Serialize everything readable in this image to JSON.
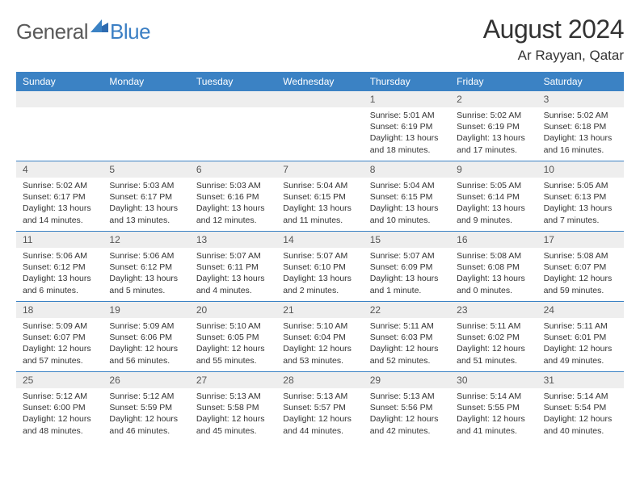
{
  "logo": {
    "general": "General",
    "blue": "Blue"
  },
  "title": {
    "month": "August 2024",
    "location": "Ar Rayyan, Qatar"
  },
  "colors": {
    "header_bg": "#3b82c4",
    "header_text": "#ffffff",
    "daynum_bg": "#eeeeee",
    "daynum_text": "#555555",
    "divider": "#3b82c4",
    "body_text": "#333333",
    "logo_gray": "#5a5a5a",
    "logo_blue": "#3b7fc4"
  },
  "weekdays": [
    "Sunday",
    "Monday",
    "Tuesday",
    "Wednesday",
    "Thursday",
    "Friday",
    "Saturday"
  ],
  "weeks": [
    [
      null,
      null,
      null,
      null,
      {
        "n": "1",
        "sr": "5:01 AM",
        "ss": "6:19 PM",
        "dl": "13 hours and 18 minutes."
      },
      {
        "n": "2",
        "sr": "5:02 AM",
        "ss": "6:19 PM",
        "dl": "13 hours and 17 minutes."
      },
      {
        "n": "3",
        "sr": "5:02 AM",
        "ss": "6:18 PM",
        "dl": "13 hours and 16 minutes."
      }
    ],
    [
      {
        "n": "4",
        "sr": "5:02 AM",
        "ss": "6:17 PM",
        "dl": "13 hours and 14 minutes."
      },
      {
        "n": "5",
        "sr": "5:03 AM",
        "ss": "6:17 PM",
        "dl": "13 hours and 13 minutes."
      },
      {
        "n": "6",
        "sr": "5:03 AM",
        "ss": "6:16 PM",
        "dl": "13 hours and 12 minutes."
      },
      {
        "n": "7",
        "sr": "5:04 AM",
        "ss": "6:15 PM",
        "dl": "13 hours and 11 minutes."
      },
      {
        "n": "8",
        "sr": "5:04 AM",
        "ss": "6:15 PM",
        "dl": "13 hours and 10 minutes."
      },
      {
        "n": "9",
        "sr": "5:05 AM",
        "ss": "6:14 PM",
        "dl": "13 hours and 9 minutes."
      },
      {
        "n": "10",
        "sr": "5:05 AM",
        "ss": "6:13 PM",
        "dl": "13 hours and 7 minutes."
      }
    ],
    [
      {
        "n": "11",
        "sr": "5:06 AM",
        "ss": "6:12 PM",
        "dl": "13 hours and 6 minutes."
      },
      {
        "n": "12",
        "sr": "5:06 AM",
        "ss": "6:12 PM",
        "dl": "13 hours and 5 minutes."
      },
      {
        "n": "13",
        "sr": "5:07 AM",
        "ss": "6:11 PM",
        "dl": "13 hours and 4 minutes."
      },
      {
        "n": "14",
        "sr": "5:07 AM",
        "ss": "6:10 PM",
        "dl": "13 hours and 2 minutes."
      },
      {
        "n": "15",
        "sr": "5:07 AM",
        "ss": "6:09 PM",
        "dl": "13 hours and 1 minute."
      },
      {
        "n": "16",
        "sr": "5:08 AM",
        "ss": "6:08 PM",
        "dl": "13 hours and 0 minutes."
      },
      {
        "n": "17",
        "sr": "5:08 AM",
        "ss": "6:07 PM",
        "dl": "12 hours and 59 minutes."
      }
    ],
    [
      {
        "n": "18",
        "sr": "5:09 AM",
        "ss": "6:07 PM",
        "dl": "12 hours and 57 minutes."
      },
      {
        "n": "19",
        "sr": "5:09 AM",
        "ss": "6:06 PM",
        "dl": "12 hours and 56 minutes."
      },
      {
        "n": "20",
        "sr": "5:10 AM",
        "ss": "6:05 PM",
        "dl": "12 hours and 55 minutes."
      },
      {
        "n": "21",
        "sr": "5:10 AM",
        "ss": "6:04 PM",
        "dl": "12 hours and 53 minutes."
      },
      {
        "n": "22",
        "sr": "5:11 AM",
        "ss": "6:03 PM",
        "dl": "12 hours and 52 minutes."
      },
      {
        "n": "23",
        "sr": "5:11 AM",
        "ss": "6:02 PM",
        "dl": "12 hours and 51 minutes."
      },
      {
        "n": "24",
        "sr": "5:11 AM",
        "ss": "6:01 PM",
        "dl": "12 hours and 49 minutes."
      }
    ],
    [
      {
        "n": "25",
        "sr": "5:12 AM",
        "ss": "6:00 PM",
        "dl": "12 hours and 48 minutes."
      },
      {
        "n": "26",
        "sr": "5:12 AM",
        "ss": "5:59 PM",
        "dl": "12 hours and 46 minutes."
      },
      {
        "n": "27",
        "sr": "5:13 AM",
        "ss": "5:58 PM",
        "dl": "12 hours and 45 minutes."
      },
      {
        "n": "28",
        "sr": "5:13 AM",
        "ss": "5:57 PM",
        "dl": "12 hours and 44 minutes."
      },
      {
        "n": "29",
        "sr": "5:13 AM",
        "ss": "5:56 PM",
        "dl": "12 hours and 42 minutes."
      },
      {
        "n": "30",
        "sr": "5:14 AM",
        "ss": "5:55 PM",
        "dl": "12 hours and 41 minutes."
      },
      {
        "n": "31",
        "sr": "5:14 AM",
        "ss": "5:54 PM",
        "dl": "12 hours and 40 minutes."
      }
    ]
  ],
  "labels": {
    "sunrise": "Sunrise: ",
    "sunset": "Sunset: ",
    "daylight": "Daylight: "
  }
}
